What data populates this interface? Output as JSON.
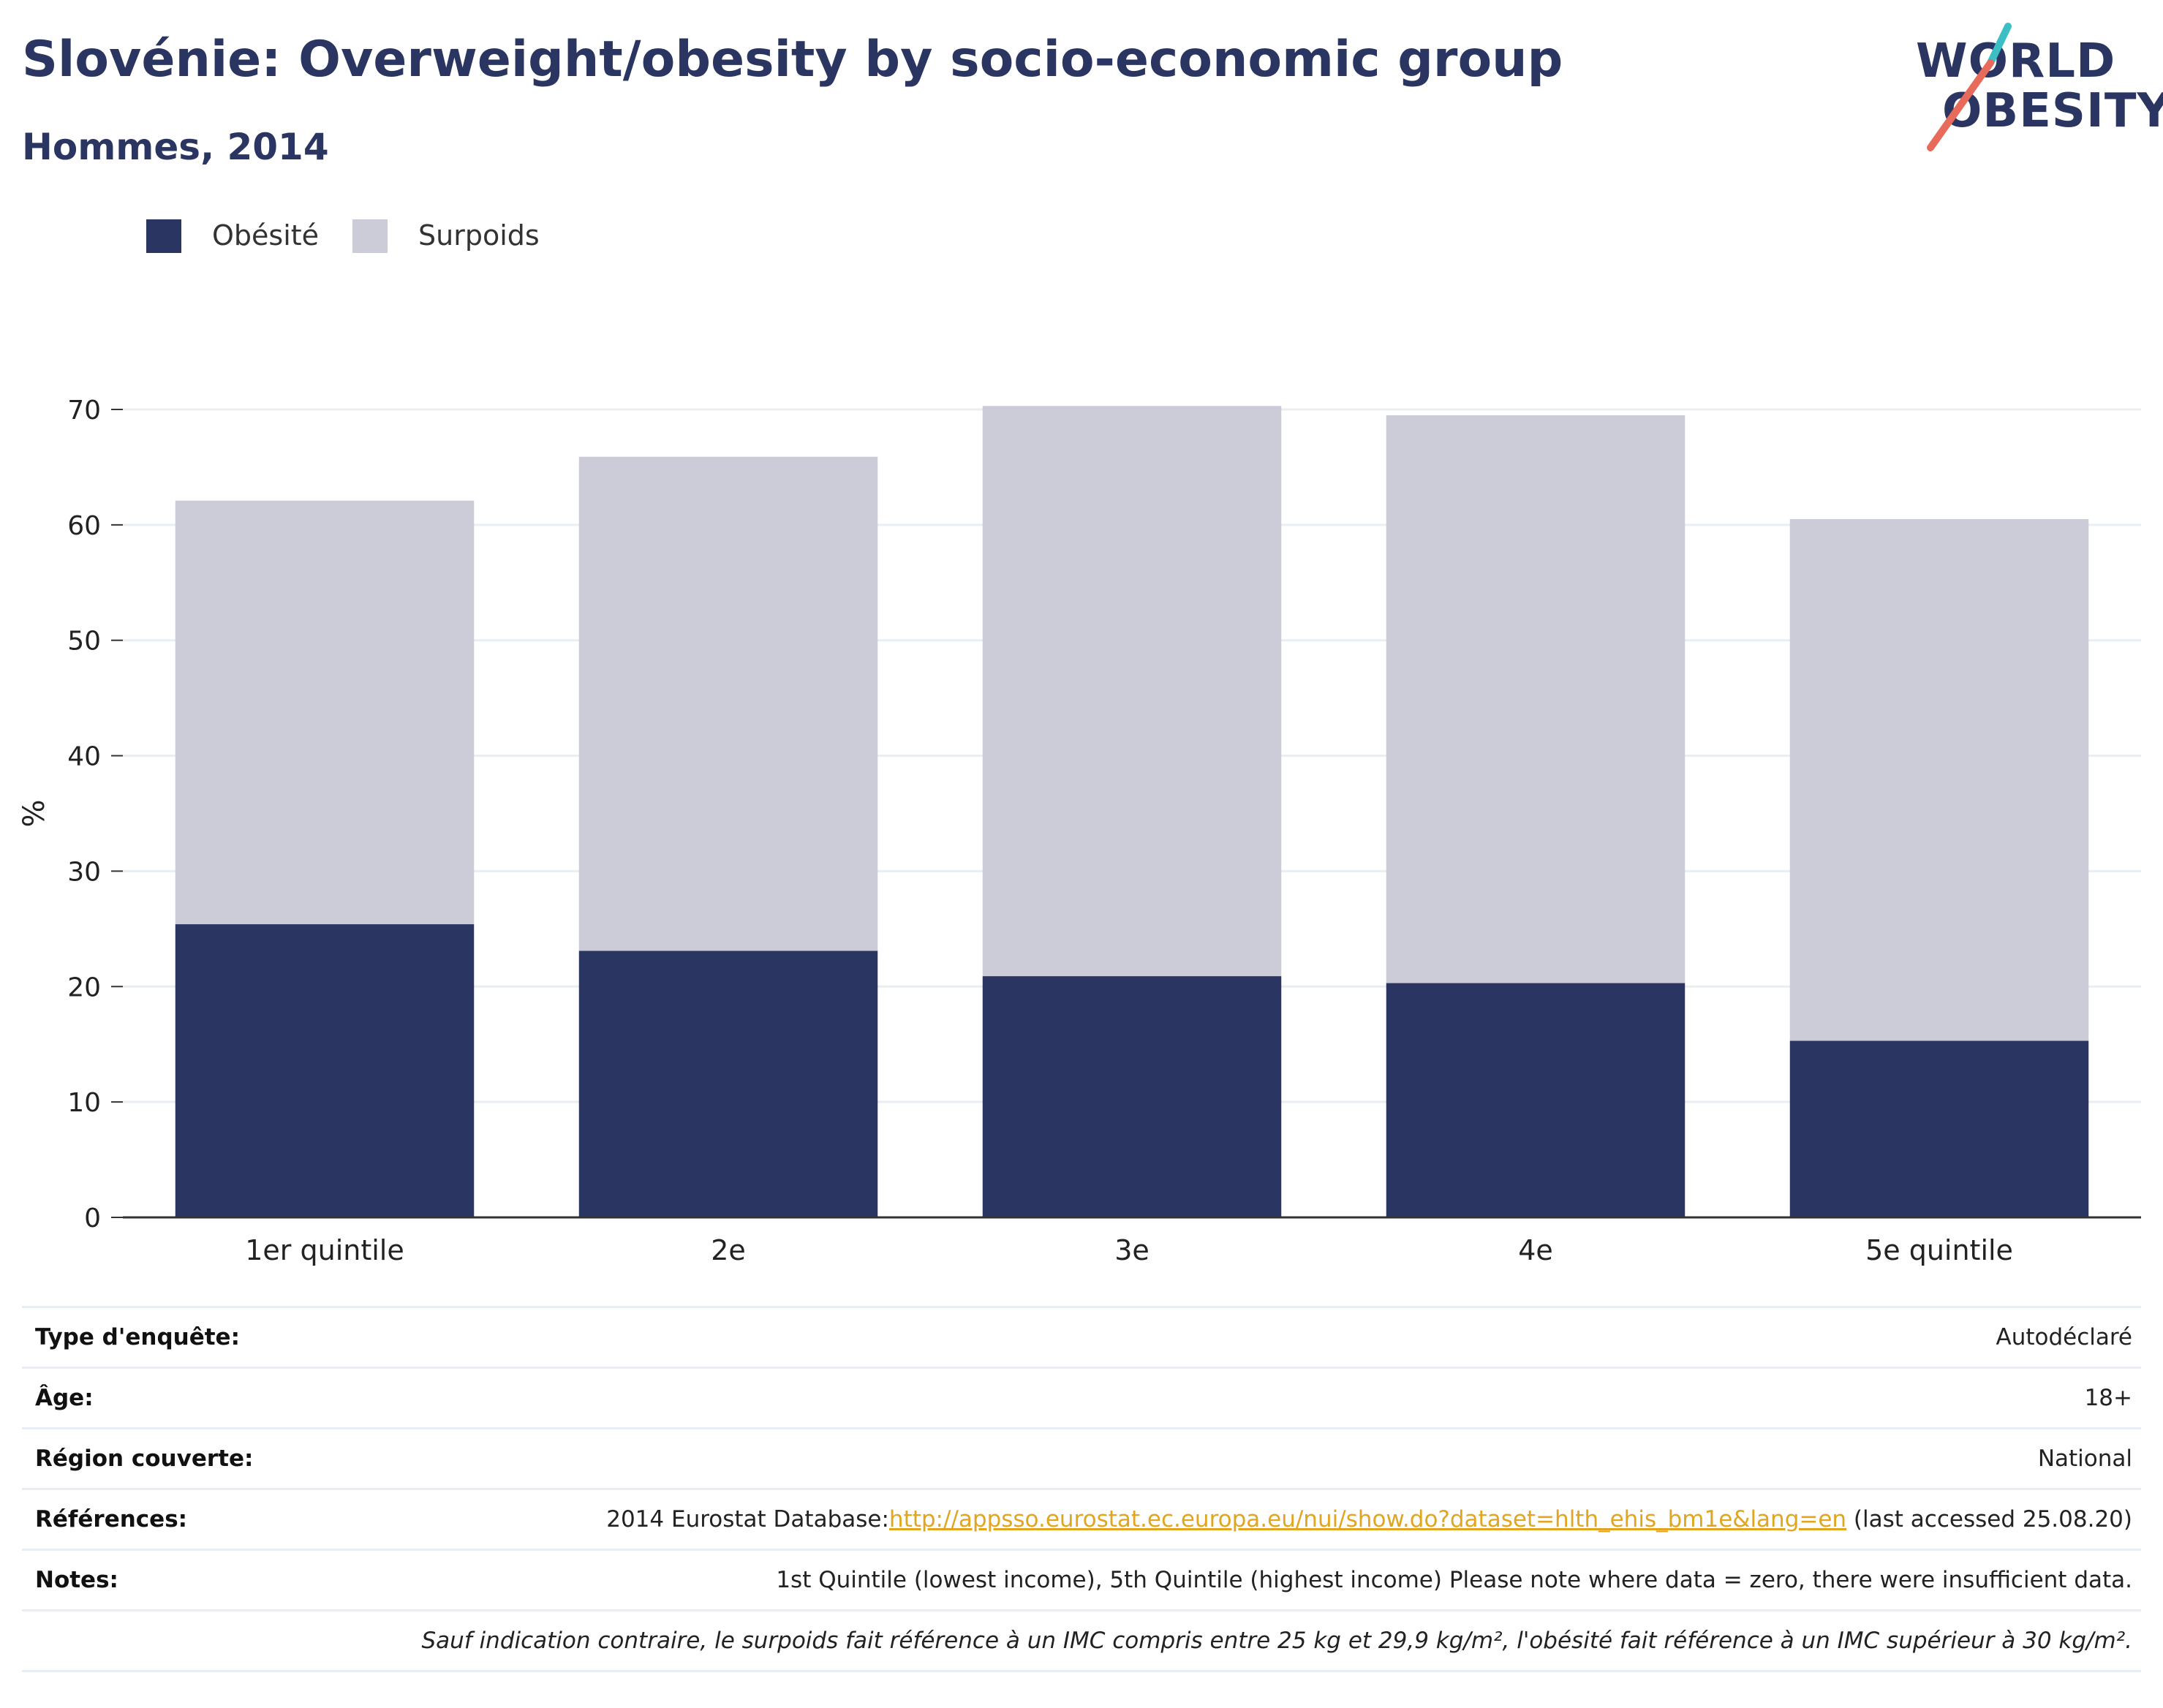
{
  "header": {
    "title": "Slovénie: Overweight/obesity by socio-economic group",
    "subtitle": "Hommes, 2014"
  },
  "logo": {
    "line1": "WORLD",
    "line2": "OBESITY",
    "colors": {
      "teal": "#3bbfc4",
      "coral": "#e86a5a"
    }
  },
  "legend": {
    "items": [
      {
        "label": "Obésité",
        "color": "#2a3561"
      },
      {
        "label": "Surpoids",
        "color": "#cbccd8"
      }
    ]
  },
  "chart_data": {
    "type": "bar",
    "stacked": true,
    "title": "Slovénie: Overweight/obesity by socio-economic group",
    "subtitle": "Hommes, 2014",
    "xlabel": "",
    "ylabel": "%",
    "ylim": [
      0,
      70
    ],
    "yticks": [
      0,
      10,
      20,
      30,
      40,
      50,
      60,
      70
    ],
    "grid": true,
    "legend_position": "top-left",
    "categories": [
      "1er quintile",
      "2e",
      "3e",
      "4e",
      "5e quintile"
    ],
    "series": [
      {
        "name": "Obésité",
        "color": "#2a3561",
        "values": [
          25.4,
          23.1,
          20.9,
          20.3,
          15.3
        ]
      },
      {
        "name": "Surpoids",
        "color": "#cbccd8",
        "values": [
          36.7,
          42.8,
          49.4,
          49.2,
          45.2
        ]
      }
    ]
  },
  "info_table": {
    "rows": [
      {
        "label": "Type d'enquête:",
        "value": "Autodéclaré"
      },
      {
        "label": "Âge:",
        "value": "18+"
      },
      {
        "label": "Région couverte:",
        "value": "National"
      },
      {
        "label": "Références:",
        "value_prefix": "2014 Eurostat Database:",
        "link": "http://appsso.eurostat.ec.europa.eu/nui/show.do?dataset=hlth_ehis_bm1e&lang=en",
        "value_suffix": " (last accessed 25.08.20)"
      },
      {
        "label": "Notes:",
        "value": "1st Quintile (lowest income), 5th Quintile (highest income) Please note where data = zero, there were insufficient data."
      }
    ],
    "footnote": "Sauf indication contraire, le surpoids fait référence à un IMC compris entre 25 kg et 29,9 kg/m², l'obésité fait référence à un IMC supérieur à 30 kg/m²."
  }
}
